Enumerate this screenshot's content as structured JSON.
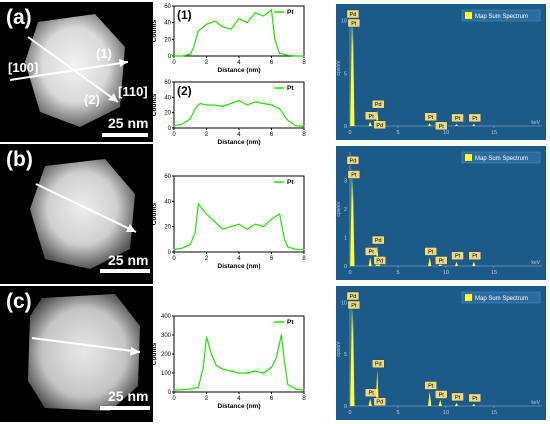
{
  "rows": [
    {
      "label": "(a)",
      "scale_bar": "25 nm",
      "direction_labels": [
        "[100]",
        "[110]"
      ],
      "line_labels": [
        "(1)",
        "(2)"
      ]
    },
    {
      "label": "(b)",
      "scale_bar": "25 nm"
    },
    {
      "label": "(c)",
      "scale_bar": "25 nm"
    }
  ],
  "chart_data": [
    {
      "type": "line",
      "panel_tag": "(1)",
      "xlabel": "Distance (nm)",
      "ylabel": "Counts",
      "xlim": [
        0,
        8
      ],
      "ylim": [
        0,
        60
      ],
      "xticks": [
        0,
        2,
        4,
        6,
        8
      ],
      "yticks": [
        0,
        20,
        40,
        60
      ],
      "series": [
        {
          "name": "Pt",
          "color": "#22e000",
          "x": [
            0,
            0.5,
            1,
            1.2,
            1.5,
            2,
            2.5,
            3,
            3.5,
            4,
            4.5,
            5,
            5.5,
            6,
            6.2,
            6.5,
            7,
            7.5,
            8
          ],
          "y": [
            0,
            0,
            2,
            10,
            30,
            38,
            42,
            35,
            32,
            45,
            40,
            52,
            48,
            55,
            20,
            3,
            1,
            0,
            0
          ]
        }
      ]
    },
    {
      "type": "line",
      "panel_tag": "(2)",
      "xlabel": "Distance (nm)",
      "ylabel": "Counts",
      "xlim": [
        0,
        8
      ],
      "ylim": [
        0,
        60
      ],
      "xticks": [
        0,
        2,
        4,
        6,
        8
      ],
      "yticks": [
        0,
        20,
        40,
        60
      ],
      "series": [
        {
          "name": "Pt",
          "color": "#22e000",
          "x": [
            0,
            0.5,
            1,
            1.3,
            1.6,
            2,
            2.5,
            3,
            3.5,
            4,
            4.5,
            5,
            5.5,
            6,
            6.5,
            7,
            7.5,
            8
          ],
          "y": [
            3,
            5,
            12,
            25,
            32,
            30,
            30,
            28,
            32,
            36,
            30,
            34,
            32,
            30,
            25,
            10,
            3,
            2
          ]
        }
      ]
    },
    {
      "type": "line",
      "xlabel": "Distance (nm)",
      "ylabel": "Counts",
      "xlim": [
        0,
        8
      ],
      "ylim": [
        0,
        60
      ],
      "xticks": [
        0,
        2,
        4,
        6,
        8
      ],
      "yticks": [
        0,
        20,
        40,
        60
      ],
      "series": [
        {
          "name": "Pt",
          "color": "#22e000",
          "x": [
            0,
            0.5,
            1,
            1.3,
            1.5,
            2,
            2.5,
            3,
            3.5,
            4,
            4.5,
            5,
            5.5,
            6,
            6.5,
            6.8,
            7,
            7.5,
            8
          ],
          "y": [
            2,
            3,
            6,
            15,
            38,
            30,
            24,
            18,
            20,
            22,
            18,
            22,
            20,
            26,
            30,
            10,
            4,
            2,
            2
          ]
        }
      ]
    },
    {
      "type": "line",
      "xlabel": "Distance (nm)",
      "ylabel": "Counts",
      "xlim": [
        0,
        8
      ],
      "ylim": [
        0,
        400
      ],
      "xticks": [
        0,
        2,
        4,
        6,
        8
      ],
      "yticks": [
        0,
        100,
        200,
        300,
        400
      ],
      "series": [
        {
          "name": "Pt",
          "color": "#22e000",
          "x": [
            0,
            0.5,
            1,
            1.5,
            1.8,
            2,
            2.3,
            2.6,
            3,
            3.5,
            4,
            4.5,
            5,
            5.5,
            6,
            6.3,
            6.6,
            6.8,
            7,
            7.5,
            8
          ],
          "y": [
            10,
            12,
            15,
            25,
            130,
            290,
            200,
            140,
            120,
            110,
            100,
            100,
            110,
            100,
            130,
            180,
            300,
            160,
            40,
            15,
            10
          ]
        }
      ]
    },
    {
      "type": "bar",
      "legend": "Map Sum Spectrum",
      "ylabel": "cps/eV",
      "xlabel": "keV",
      "xlim": [
        0,
        20
      ],
      "ylim": [
        0,
        11
      ],
      "xticks": [
        0,
        5,
        10,
        15
      ],
      "yticks": [
        0,
        5,
        10
      ],
      "peaks": [
        {
          "x": 0.2,
          "y": 10.5,
          "label": "Pd"
        },
        {
          "x": 0.3,
          "y": 10.0,
          "label": "Pt"
        },
        {
          "x": 2.1,
          "y": 0.4,
          "label": "Pt"
        },
        {
          "x": 2.84,
          "y": 1.5,
          "label": "Pd"
        },
        {
          "x": 3.0,
          "y": 0.4,
          "label": "Pd"
        },
        {
          "x": 8.3,
          "y": 0.3,
          "label": "Pt"
        },
        {
          "x": 9.4,
          "y": 0.3,
          "label": "Pt"
        },
        {
          "x": 11.1,
          "y": 0.2,
          "label": "Pt"
        },
        {
          "x": 12.9,
          "y": 0.2,
          "label": "Pt"
        }
      ]
    },
    {
      "type": "bar",
      "legend": "Map Sum Spectrum",
      "ylabel": "cps/eV",
      "xlabel": "keV",
      "xlim": [
        0,
        20
      ],
      "ylim": [
        0,
        4
      ],
      "xticks": [
        0,
        5,
        10,
        15
      ],
      "yticks": [
        0,
        1,
        2,
        3
      ],
      "peaks": [
        {
          "x": 0.2,
          "y": 3.5,
          "label": "Pd"
        },
        {
          "x": 0.3,
          "y": 3.0,
          "label": "Pt"
        },
        {
          "x": 2.1,
          "y": 0.3,
          "label": "Pt"
        },
        {
          "x": 2.84,
          "y": 0.7,
          "label": "Pd"
        },
        {
          "x": 3.0,
          "y": 0.2,
          "label": "Pd"
        },
        {
          "x": 8.3,
          "y": 0.3,
          "label": "Pt"
        },
        {
          "x": 9.4,
          "y": 0.2,
          "label": "Pt"
        },
        {
          "x": 11.1,
          "y": 0.15,
          "label": "Pt"
        },
        {
          "x": 12.9,
          "y": 0.15,
          "label": "Pt"
        }
      ]
    },
    {
      "type": "bar",
      "legend": "Map Sum Spectrum",
      "ylabel": "cps/eV",
      "xlabel": "keV",
      "xlim": [
        0,
        20
      ],
      "ylim": [
        0,
        11
      ],
      "xticks": [
        0,
        5,
        10,
        15
      ],
      "yticks": [
        0,
        5,
        10
      ],
      "peaks": [
        {
          "x": 0.2,
          "y": 10.2,
          "label": "Pd"
        },
        {
          "x": 0.3,
          "y": 9.5,
          "label": "Pt"
        },
        {
          "x": 2.1,
          "y": 0.7,
          "label": "Pt"
        },
        {
          "x": 2.84,
          "y": 3.5,
          "label": "Pd"
        },
        {
          "x": 3.0,
          "y": 0.5,
          "label": "Pd"
        },
        {
          "x": 8.3,
          "y": 1.4,
          "label": "Pt"
        },
        {
          "x": 9.4,
          "y": 0.6,
          "label": "Pt"
        },
        {
          "x": 11.1,
          "y": 0.3,
          "label": "Pt"
        },
        {
          "x": 12.9,
          "y": 0.2,
          "label": "Pt"
        }
      ]
    }
  ]
}
